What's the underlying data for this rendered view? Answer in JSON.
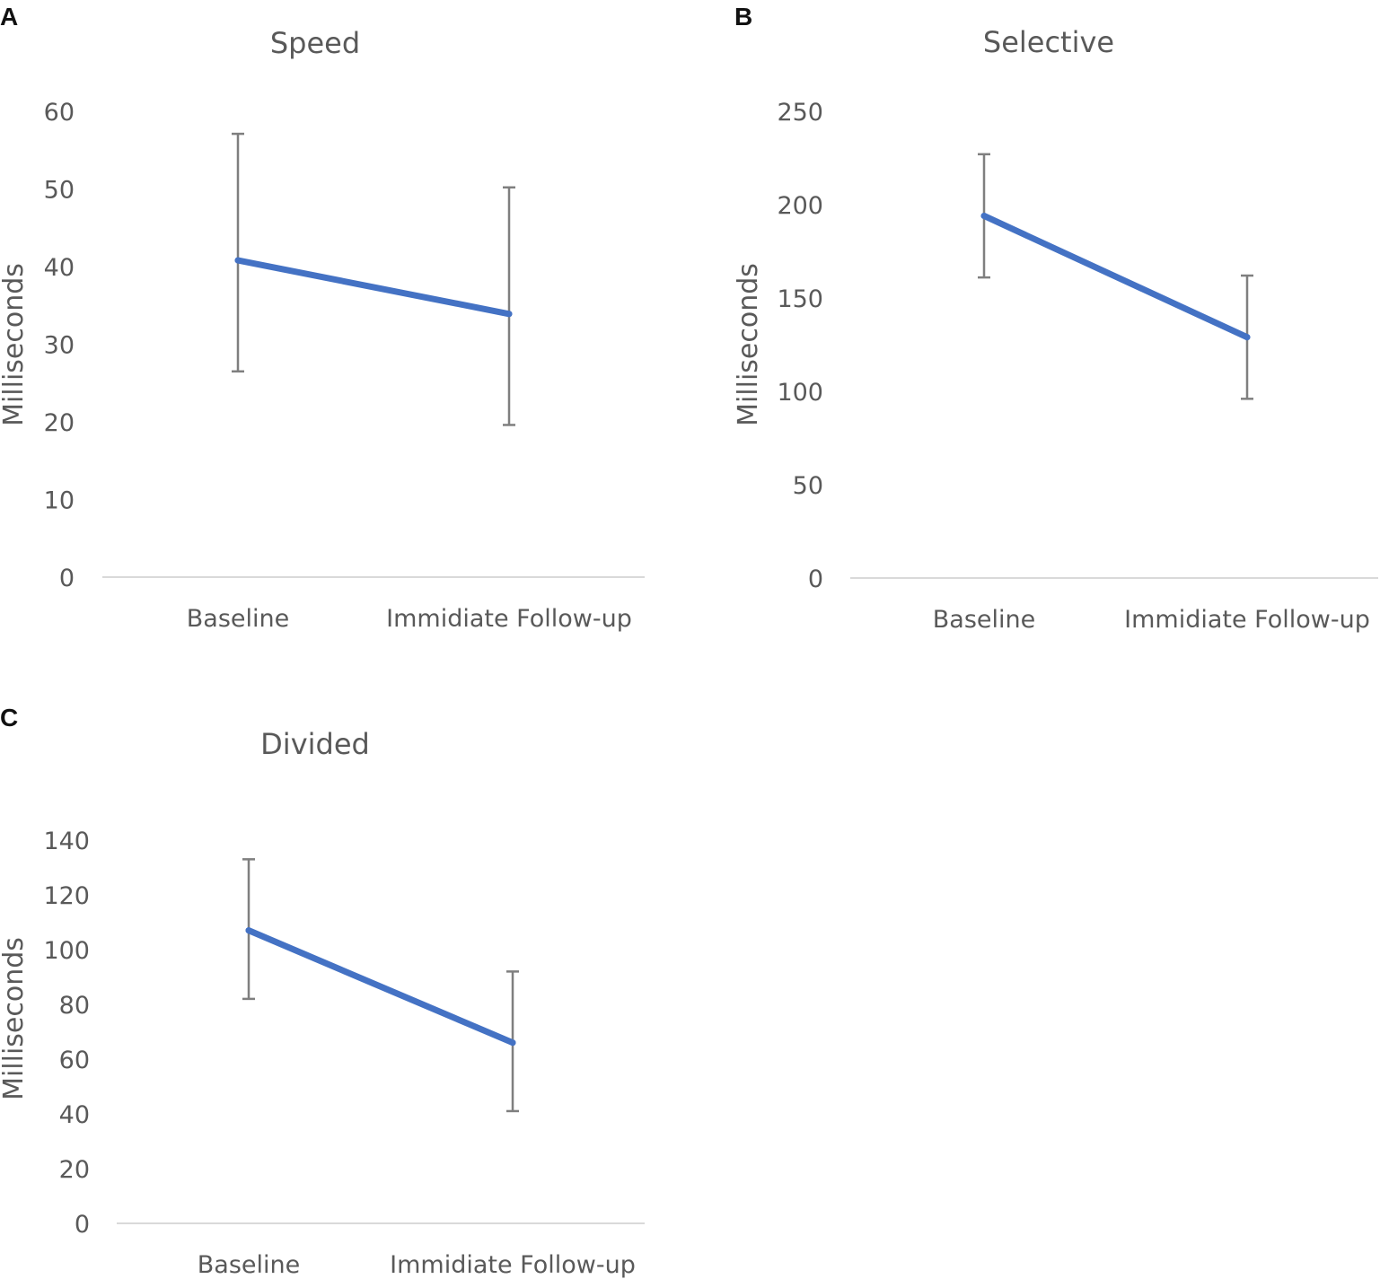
{
  "figure": {
    "colors": {
      "series": "#4472c4",
      "error_bar": "#7f7f7f",
      "axis": "#d9d9d9",
      "text": "#595959"
    }
  },
  "chart_data": [
    {
      "panel": "A",
      "type": "line",
      "title": "Speed",
      "xlabel": "",
      "ylabel": "Milliseconds",
      "categories": [
        "Baseline",
        "Immidiate Follow-up"
      ],
      "series": [
        {
          "name": "Speed",
          "values": [
            40.8,
            33.9
          ],
          "error_low": [
            26.5,
            19.6
          ],
          "error_high": [
            57.1,
            50.2
          ]
        }
      ],
      "ylim": [
        0,
        60
      ],
      "yticks": [
        0,
        10,
        20,
        30,
        40,
        50,
        60
      ],
      "ytick_labels": [
        "0",
        "10",
        "20",
        "30",
        "40",
        "50",
        "60"
      ],
      "grid": false,
      "legend": "none"
    },
    {
      "panel": "B",
      "type": "line",
      "title": "Selective",
      "xlabel": "",
      "ylabel": "Milliseconds",
      "categories": [
        "Baseline",
        "Immidiate Follow-up"
      ],
      "series": [
        {
          "name": "Selective",
          "values": [
            194,
            129
          ],
          "error_low": [
            161,
            96
          ],
          "error_high": [
            227,
            162
          ]
        }
      ],
      "ylim": [
        0,
        250
      ],
      "yticks": [
        0,
        50,
        100,
        150,
        200,
        250
      ],
      "ytick_labels": [
        "0",
        "50",
        "100",
        "150",
        "200",
        "250"
      ],
      "grid": false,
      "legend": "none"
    },
    {
      "panel": "C",
      "type": "line",
      "title": "Divided",
      "xlabel": "",
      "ylabel": "Milliseconds",
      "categories": [
        "Baseline",
        "Immidiate Follow-up"
      ],
      "series": [
        {
          "name": "Divided",
          "values": [
            107,
            66
          ],
          "error_low": [
            82,
            41
          ],
          "error_high": [
            133,
            92
          ]
        }
      ],
      "ylim": [
        0,
        140
      ],
      "yticks": [
        0,
        20,
        40,
        60,
        80,
        100,
        120,
        140
      ],
      "ytick_labels": [
        "0",
        "20",
        "40",
        "60",
        "80",
        "100",
        "120",
        "140"
      ],
      "grid": false,
      "legend": "none"
    }
  ]
}
